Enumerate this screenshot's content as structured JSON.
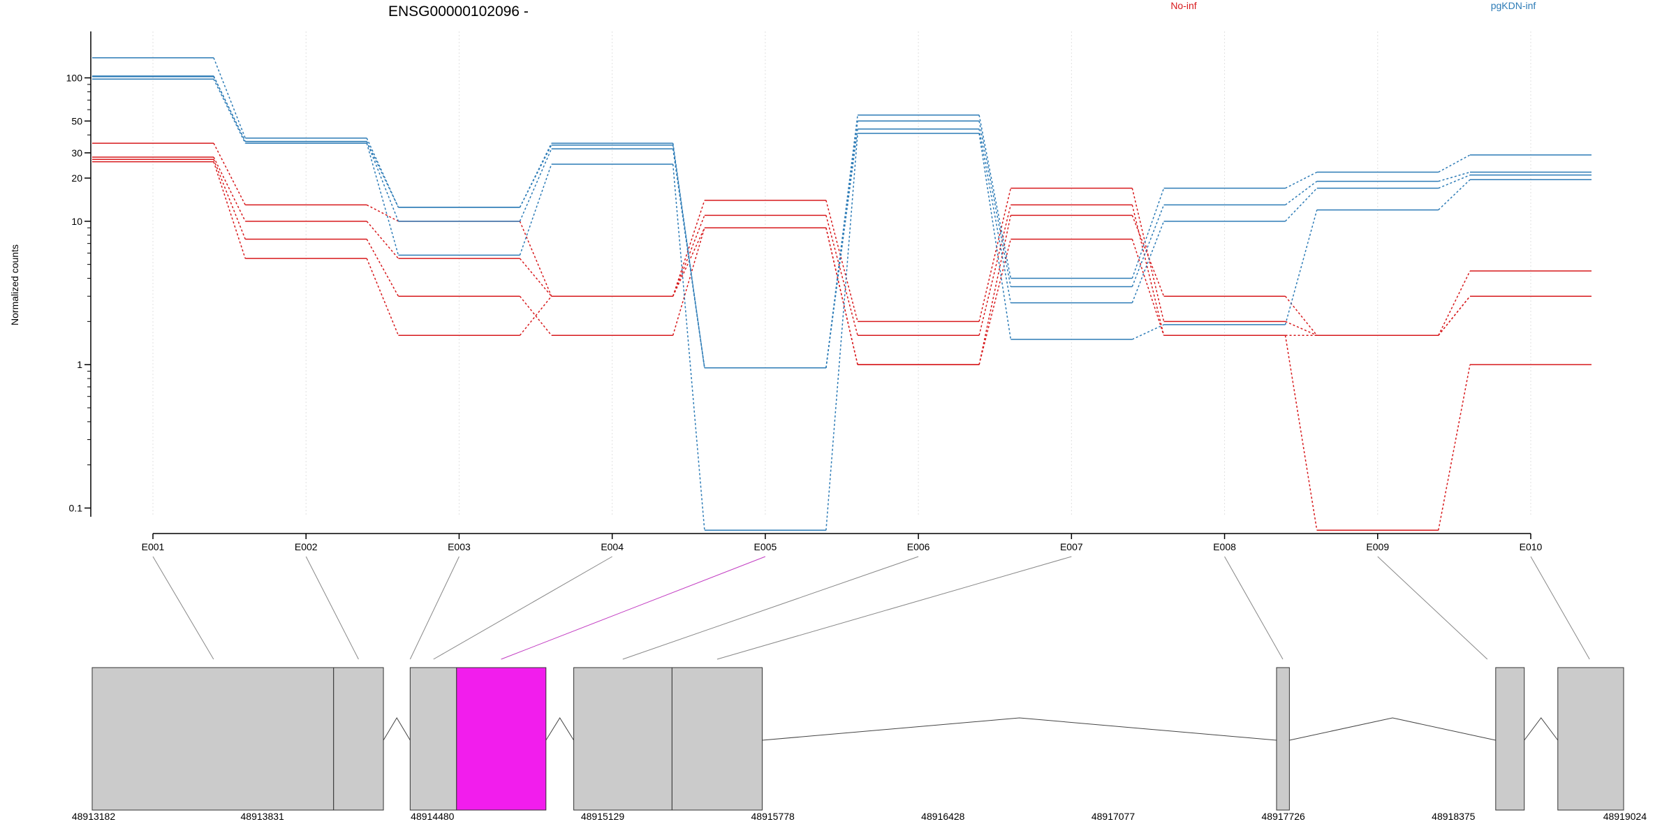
{
  "chart_data": {
    "type": "line",
    "title": "ENSG00000102096 -",
    "ylabel": "Normalized counts",
    "xlabel": "",
    "yscale": "log",
    "yticks": [
      0.1,
      1,
      10,
      20,
      30,
      50,
      100
    ],
    "ytick_labels": [
      "0.1",
      "1",
      "10",
      "20",
      "30",
      "50",
      "100"
    ],
    "ylim": [
      0.08,
      150
    ],
    "categories": [
      "E001",
      "E002",
      "E003",
      "E004",
      "E005",
      "E006",
      "E007",
      "E008",
      "E009",
      "E010"
    ],
    "legend": [
      {
        "name": "No-inf",
        "color": "#d7191c"
      },
      {
        "name": "pgKDN-inf",
        "color": "#2c7bb6"
      }
    ],
    "grid": "vertical dotted",
    "series": [
      {
        "group": "No-inf",
        "color": "#d7191c",
        "values": [
          35,
          13,
          10,
          3.0,
          14,
          2.0,
          17,
          2.0,
          1.6,
          3.0
        ]
      },
      {
        "group": "No-inf",
        "color": "#d7191c",
        "values": [
          28,
          10,
          5.5,
          3.0,
          11,
          1.6,
          13,
          1.6,
          1.6,
          4.5
        ]
      },
      {
        "group": "No-inf",
        "color": "#d7191c",
        "values": [
          27,
          7.5,
          3.0,
          1.6,
          9,
          1.0,
          11,
          3.0,
          1.6,
          3.0
        ]
      },
      {
        "group": "No-inf",
        "color": "#d7191c",
        "values": [
          26,
          5.5,
          1.6,
          3.0,
          9,
          1.0,
          7.5,
          1.6,
          0.07,
          1.0
        ]
      },
      {
        "group": "pgKDN-inf",
        "color": "#2c7bb6",
        "values": [
          138,
          38,
          12.5,
          35,
          0.95,
          55,
          4.0,
          17,
          22,
          29
        ]
      },
      {
        "group": "pgKDN-inf",
        "color": "#2c7bb6",
        "values": [
          103,
          36,
          12.5,
          34,
          0.95,
          50,
          3.5,
          13,
          19,
          22
        ]
      },
      {
        "group": "pgKDN-inf",
        "color": "#2c7bb6",
        "values": [
          102,
          36,
          10,
          32,
          0.95,
          44,
          2.7,
          10,
          17,
          21
        ]
      },
      {
        "group": "pgKDN-inf",
        "color": "#2c7bb6",
        "values": [
          98,
          35,
          5.8,
          25,
          0.07,
          41,
          1.5,
          1.9,
          12,
          19.5
        ]
      }
    ],
    "highlight_exon": "E005",
    "gene_model": {
      "coordinate_labels": [
        "48913182",
        "48913831",
        "48914480",
        "48915129",
        "48915778",
        "48916428",
        "48917077",
        "48917726",
        "48918375",
        "48919024"
      ],
      "coordinate_range": [
        48913182,
        48919024
      ],
      "exons": [
        {
          "start": 48913182,
          "end": 48914103,
          "highlighted": false
        },
        {
          "start": 48914103,
          "end": 48914293,
          "highlighted": false
        },
        {
          "start": 48914395,
          "end": 48914572,
          "highlighted": false
        },
        {
          "start": 48914572,
          "end": 48914913,
          "highlighted": true
        },
        {
          "start": 48915019,
          "end": 48915394,
          "highlighted": false
        },
        {
          "start": 48915394,
          "end": 48915738,
          "highlighted": false
        },
        {
          "start": 48917700,
          "end": 48917749,
          "highlighted": false
        },
        {
          "start": 48918536,
          "end": 48918645,
          "highlighted": false
        },
        {
          "start": 48918773,
          "end": 48919024,
          "highlighted": false
        }
      ],
      "exon_connectors": [
        {
          "exon": "E001",
          "position": 48913645
        },
        {
          "exon": "E002",
          "position": 48914198
        },
        {
          "exon": "E003",
          "position": 48914395
        },
        {
          "exon": "E004",
          "position": 48914484
        },
        {
          "exon": "E005",
          "position": 48914742
        },
        {
          "exon": "E006",
          "position": 48915206
        },
        {
          "exon": "E007",
          "position": 48915566
        },
        {
          "exon": "E008",
          "position": 48917724
        },
        {
          "exon": "E009",
          "position": 48918504
        },
        {
          "exon": "E010",
          "position": 48918894
        }
      ],
      "introns": [
        {
          "start": 48914293,
          "end": 48914395
        },
        {
          "start": 48914913,
          "end": 48915019
        },
        {
          "start": 48915738,
          "end": 48917700
        },
        {
          "start": 48917749,
          "end": 48918536
        },
        {
          "start": 48918645,
          "end": 48918773
        }
      ]
    },
    "colors": {
      "exon_fill": "#cbcbcb",
      "highlight_fill": "#f21ded",
      "highlight_connector": "#c23cc2",
      "connector": "#888888"
    }
  }
}
